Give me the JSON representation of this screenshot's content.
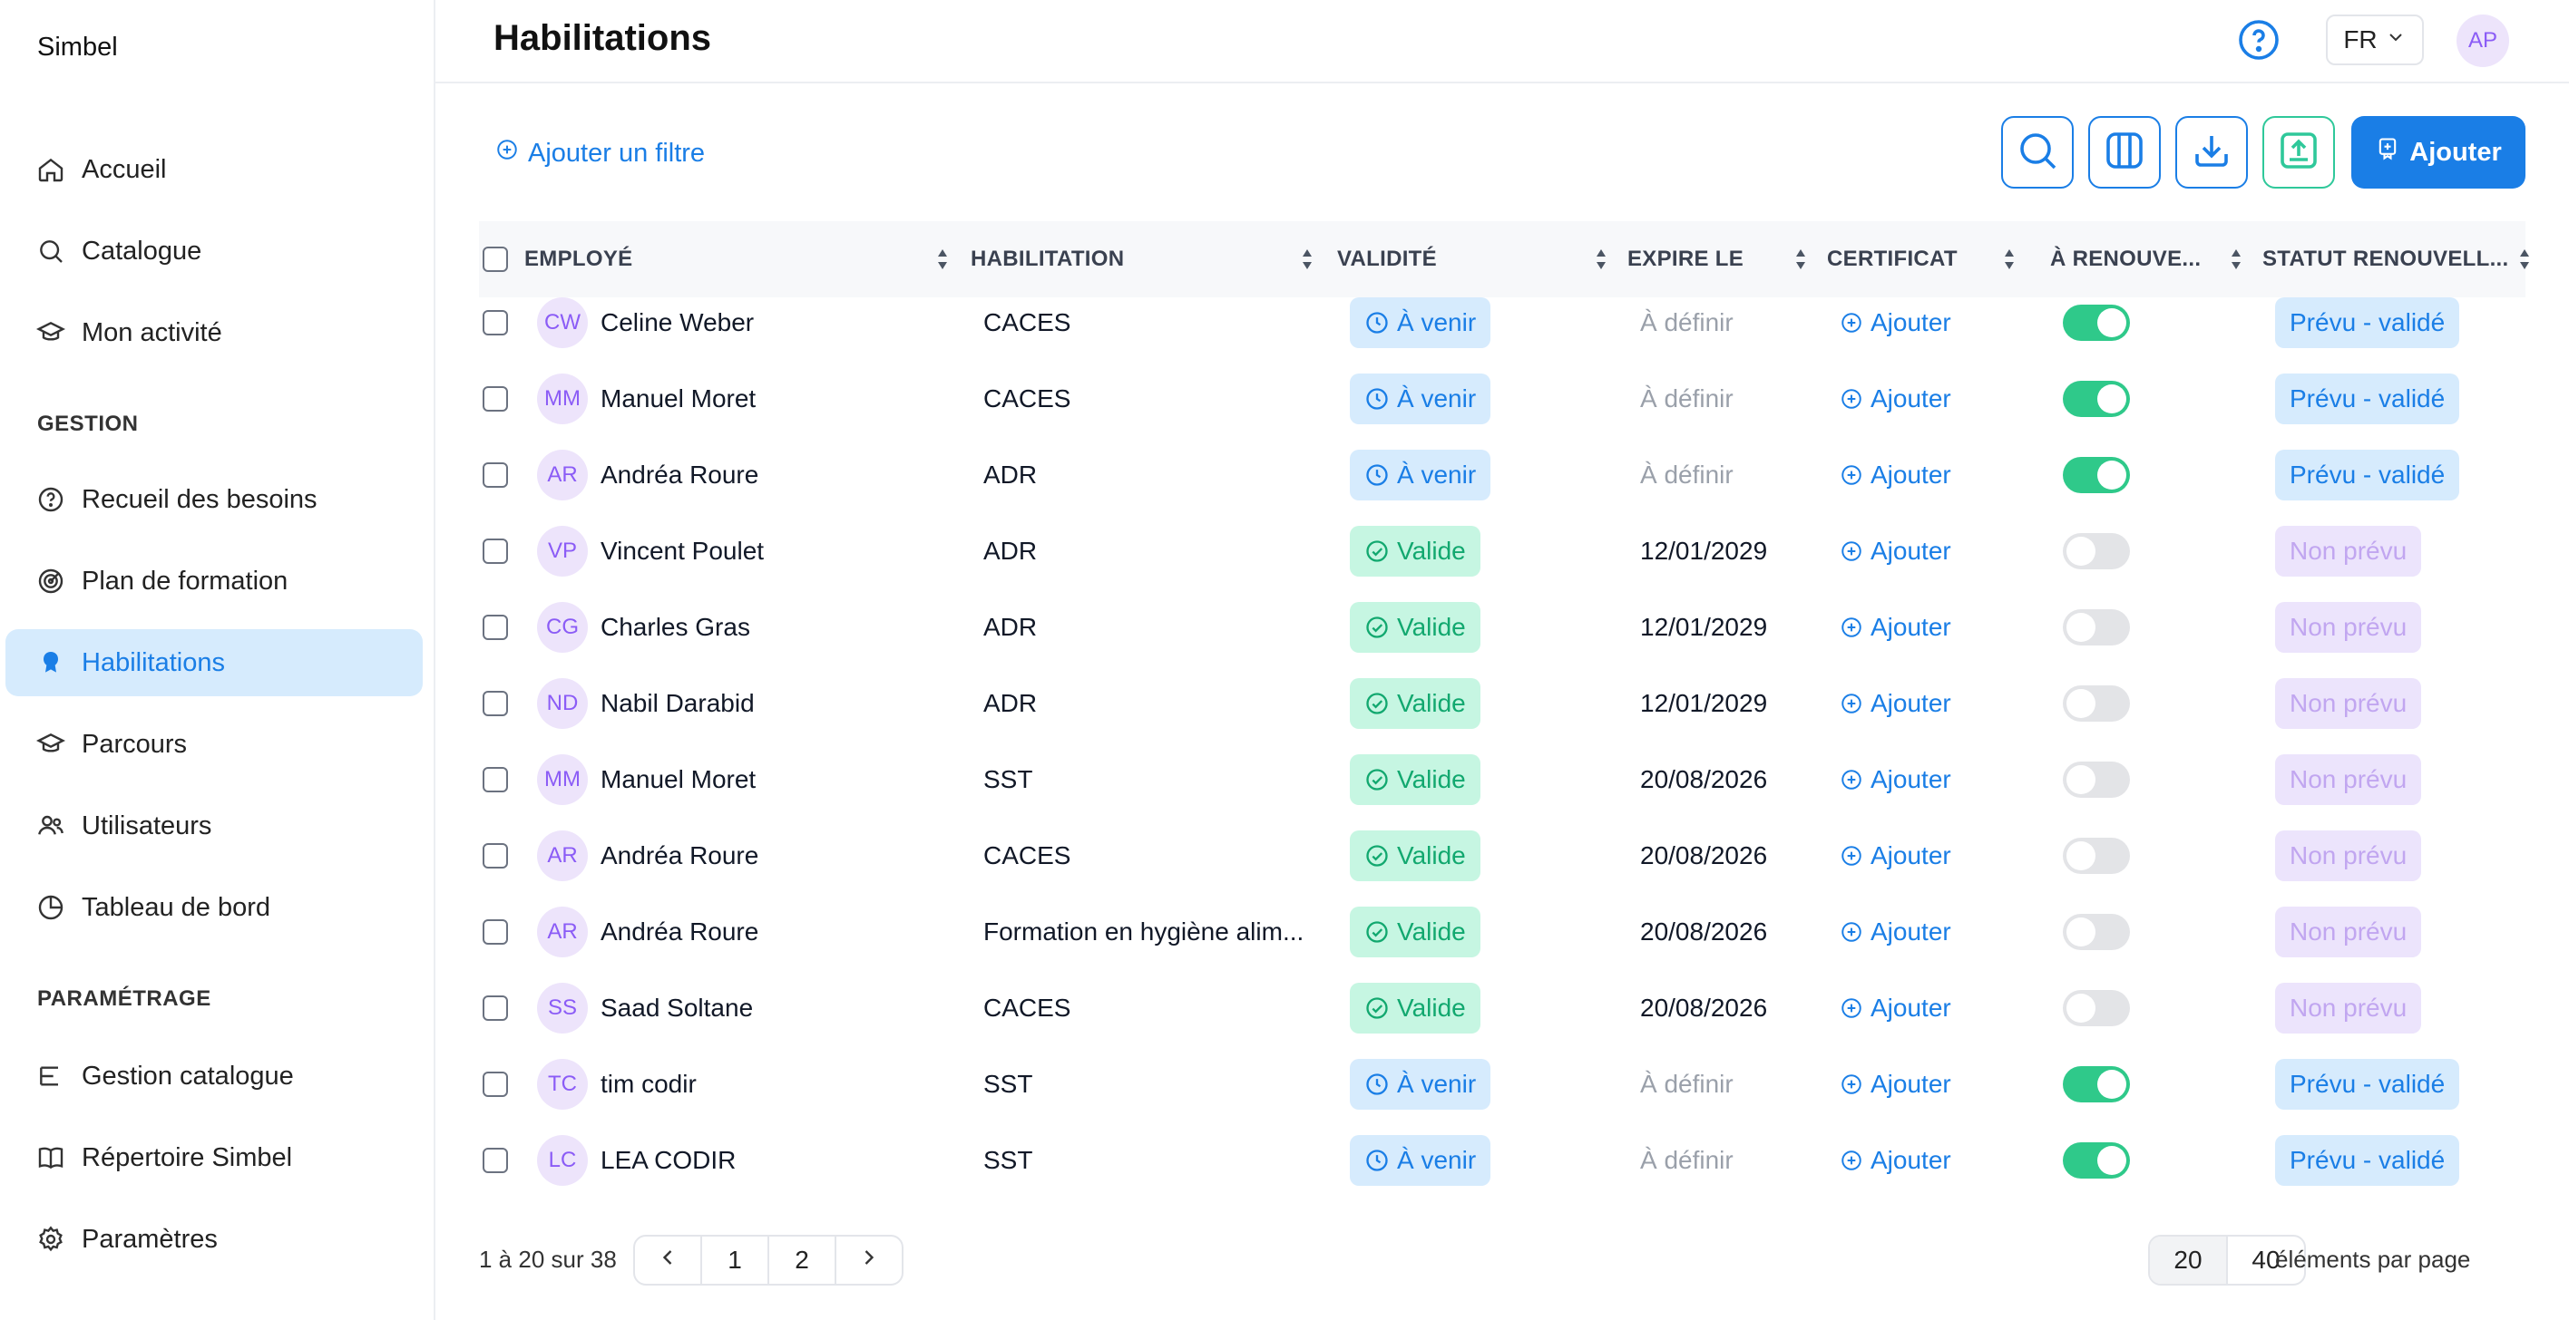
{
  "brand": "Simbel",
  "nav": {
    "main": [
      {
        "label": "Accueil",
        "icon": "home-icon"
      },
      {
        "label": "Catalogue",
        "icon": "search-icon"
      },
      {
        "label": "Mon activité",
        "icon": "graduation-cap-icon"
      }
    ],
    "gestion_label": "GESTION",
    "gestion": [
      {
        "label": "Recueil des besoins",
        "icon": "question-circle-icon"
      },
      {
        "label": "Plan de formation",
        "icon": "target-icon"
      },
      {
        "label": "Habilitations",
        "icon": "badge-icon",
        "active": true
      },
      {
        "label": "Parcours",
        "icon": "graduation-cap-icon"
      },
      {
        "label": "Utilisateurs",
        "icon": "users-icon"
      },
      {
        "label": "Tableau de bord",
        "icon": "pie-chart-icon"
      }
    ],
    "parametrage_label": "PARAMÉTRAGE",
    "parametrage": [
      {
        "label": "Gestion catalogue",
        "icon": "list-icon"
      },
      {
        "label": "Répertoire Simbel",
        "icon": "book-icon"
      },
      {
        "label": "Paramètres",
        "icon": "gear-icon"
      }
    ]
  },
  "header": {
    "title": "Habilitations",
    "lang": "FR",
    "user_initials": "AP"
  },
  "toolbar": {
    "add_filter": "Ajouter un filtre",
    "add_button": "Ajouter"
  },
  "table": {
    "columns": [
      "EMPLOYÉ",
      "HABILITATION",
      "VALIDITÉ",
      "EXPIRE LE",
      "CERTIFICAT",
      "À RENOUVE...",
      "STATUT RENOUVELL..."
    ],
    "rows": [
      {
        "initials": "CW",
        "name": "Celine Weber",
        "habilitation": "CACES",
        "validity": "À venir",
        "validity_type": "avenir",
        "expires": "À définir",
        "certificate": "Ajouter",
        "renew": true,
        "status": "Prévu - validé"
      },
      {
        "initials": "MM",
        "name": "Manuel Moret",
        "habilitation": "CACES",
        "validity": "À venir",
        "validity_type": "avenir",
        "expires": "À définir",
        "certificate": "Ajouter",
        "renew": true,
        "status": "Prévu - validé"
      },
      {
        "initials": "AR",
        "name": "Andréa Roure",
        "habilitation": "ADR",
        "validity": "À venir",
        "validity_type": "avenir",
        "expires": "À définir",
        "certificate": "Ajouter",
        "renew": true,
        "status": "Prévu - validé"
      },
      {
        "initials": "VP",
        "name": "Vincent Poulet",
        "habilitation": "ADR",
        "validity": "Valide",
        "validity_type": "valide",
        "expires": "12/01/2029",
        "certificate": "Ajouter",
        "renew": false,
        "status": "Non prévu"
      },
      {
        "initials": "CG",
        "name": "Charles Gras",
        "habilitation": "ADR",
        "validity": "Valide",
        "validity_type": "valide",
        "expires": "12/01/2029",
        "certificate": "Ajouter",
        "renew": false,
        "status": "Non prévu"
      },
      {
        "initials": "ND",
        "name": "Nabil Darabid",
        "habilitation": "ADR",
        "validity": "Valide",
        "validity_type": "valide",
        "expires": "12/01/2029",
        "certificate": "Ajouter",
        "renew": false,
        "status": "Non prévu"
      },
      {
        "initials": "MM",
        "name": "Manuel Moret",
        "habilitation": "SST",
        "validity": "Valide",
        "validity_type": "valide",
        "expires": "20/08/2026",
        "certificate": "Ajouter",
        "renew": false,
        "status": "Non prévu"
      },
      {
        "initials": "AR",
        "name": "Andréa Roure",
        "habilitation": "CACES",
        "validity": "Valide",
        "validity_type": "valide",
        "expires": "20/08/2026",
        "certificate": "Ajouter",
        "renew": false,
        "status": "Non prévu"
      },
      {
        "initials": "AR",
        "name": "Andréa Roure",
        "habilitation": "Formation en hygiène alim...",
        "validity": "Valide",
        "validity_type": "valide",
        "expires": "20/08/2026",
        "certificate": "Ajouter",
        "renew": false,
        "status": "Non prévu"
      },
      {
        "initials": "SS",
        "name": "Saad Soltane",
        "habilitation": "CACES",
        "validity": "Valide",
        "validity_type": "valide",
        "expires": "20/08/2026",
        "certificate": "Ajouter",
        "renew": false,
        "status": "Non prévu"
      },
      {
        "initials": "TC",
        "name": "tim codir",
        "habilitation": "SST",
        "validity": "À venir",
        "validity_type": "avenir",
        "expires": "À définir",
        "certificate": "Ajouter",
        "renew": true,
        "status": "Prévu - validé"
      },
      {
        "initials": "LC",
        "name": "LEA CODIR",
        "habilitation": "SST",
        "validity": "À venir",
        "validity_type": "avenir",
        "expires": "À définir",
        "certificate": "Ajouter",
        "renew": true,
        "status": "Prévu - validé"
      }
    ]
  },
  "pagination": {
    "info": "1 à 20 sur 38",
    "pages": [
      "1",
      "2"
    ],
    "page_sizes": [
      "20",
      "40"
    ],
    "per_page_label": "éléments par page"
  },
  "colors": {
    "accent": "#1a7ee6",
    "valid": "#12a86f",
    "toggle_on": "#2fc98a",
    "avatar": "#8b5cf6"
  }
}
